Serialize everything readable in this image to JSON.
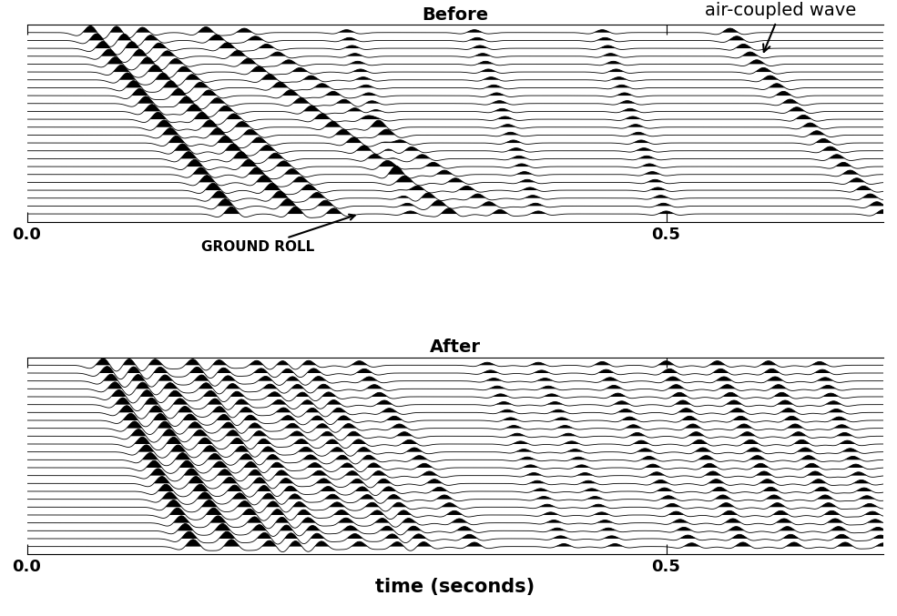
{
  "chart_data": [
    {
      "type": "wiggle",
      "title": "Before",
      "traces": 24,
      "xlim": [
        0.0,
        0.67
      ],
      "xticks": [
        {
          "value": 0.0,
          "label": "0.0"
        },
        {
          "value": 0.5,
          "label": "0.5"
        }
      ],
      "tick_labels": "x",
      "annotations": [
        "GROUND ROLL",
        "air-coupled wave"
      ],
      "events": [
        {
          "t_top": 0.05,
          "t_bottom": 0.16,
          "amplitude": 1.0
        },
        {
          "t_top": 0.07,
          "t_bottom": 0.21,
          "amplitude": 1.0
        },
        {
          "t_top": 0.09,
          "t_bottom": 0.24,
          "amplitude": 0.8
        },
        {
          "t_top": 0.14,
          "t_bottom": 0.33,
          "amplitude": 0.8
        },
        {
          "t_top": 0.17,
          "t_bottom": 0.37,
          "amplitude": 0.6
        },
        {
          "t_top": 0.25,
          "t_bottom": 0.3,
          "amplitude": 0.4
        },
        {
          "t_top": 0.35,
          "t_bottom": 0.4,
          "amplitude": 0.4
        },
        {
          "t_top": 0.45,
          "t_bottom": 0.5,
          "amplitude": 0.4
        },
        {
          "t_top": 0.55,
          "t_bottom": 0.67,
          "amplitude": 0.6
        }
      ]
    },
    {
      "type": "wiggle",
      "title": "After",
      "traces": 24,
      "x_label": "time (seconds)",
      "xlim": [
        0.0,
        0.67
      ],
      "xticks": [
        {
          "value": 0.0,
          "label": "0.0"
        },
        {
          "value": 0.5,
          "label": "0.5"
        }
      ],
      "tick_labels": "x",
      "events": [
        {
          "t_top": 0.06,
          "t_bottom": 0.13,
          "amplitude": 1.0
        },
        {
          "t_top": 0.08,
          "t_bottom": 0.16,
          "amplitude": 1.0
        },
        {
          "t_top": 0.1,
          "t_bottom": 0.19,
          "amplitude": 0.9
        },
        {
          "t_top": 0.13,
          "t_bottom": 0.21,
          "amplitude": 0.9
        },
        {
          "t_top": 0.15,
          "t_bottom": 0.23,
          "amplitude": 0.8
        },
        {
          "t_top": 0.18,
          "t_bottom": 0.26,
          "amplitude": 0.7
        },
        {
          "t_top": 0.2,
          "t_bottom": 0.29,
          "amplitude": 0.7
        },
        {
          "t_top": 0.22,
          "t_bottom": 0.31,
          "amplitude": 0.7
        },
        {
          "t_top": 0.26,
          "t_bottom": 0.35,
          "amplitude": 0.6
        },
        {
          "t_top": 0.36,
          "t_bottom": 0.42,
          "amplitude": 0.4
        },
        {
          "t_top": 0.4,
          "t_bottom": 0.46,
          "amplitude": 0.4
        },
        {
          "t_top": 0.45,
          "t_bottom": 0.52,
          "amplitude": 0.5
        },
        {
          "t_top": 0.5,
          "t_bottom": 0.56,
          "amplitude": 0.6
        },
        {
          "t_top": 0.54,
          "t_bottom": 0.6,
          "amplitude": 0.6
        },
        {
          "t_top": 0.58,
          "t_bottom": 0.64,
          "amplitude": 0.6
        },
        {
          "t_top": 0.62,
          "t_bottom": 0.67,
          "amplitude": 0.5
        }
      ]
    }
  ]
}
